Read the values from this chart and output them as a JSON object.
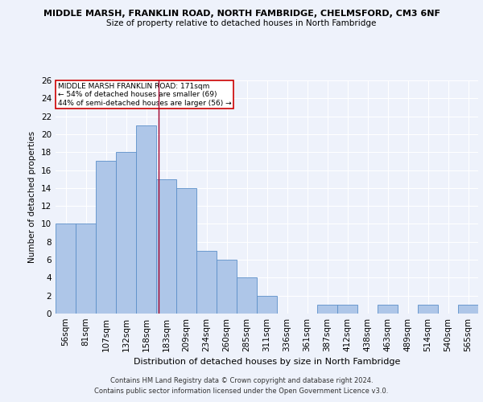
{
  "title1": "MIDDLE MARSH, FRANKLIN ROAD, NORTH FAMBRIDGE, CHELMSFORD, CM3 6NF",
  "title2": "Size of property relative to detached houses in North Fambridge",
  "xlabel": "Distribution of detached houses by size in North Fambridge",
  "ylabel": "Number of detached properties",
  "categories": [
    "56sqm",
    "81sqm",
    "107sqm",
    "132sqm",
    "158sqm",
    "183sqm",
    "209sqm",
    "234sqm",
    "260sqm",
    "285sqm",
    "311sqm",
    "336sqm",
    "361sqm",
    "387sqm",
    "412sqm",
    "438sqm",
    "463sqm",
    "489sqm",
    "514sqm",
    "540sqm",
    "565sqm"
  ],
  "values": [
    10,
    10,
    17,
    18,
    21,
    15,
    14,
    7,
    6,
    4,
    2,
    0,
    0,
    1,
    1,
    0,
    1,
    0,
    1,
    0,
    1
  ],
  "bar_color": "#aec6e8",
  "bar_edge_color": "#5b8fc9",
  "ylim": [
    0,
    26
  ],
  "yticks": [
    0,
    2,
    4,
    6,
    8,
    10,
    12,
    14,
    16,
    18,
    20,
    22,
    24,
    26
  ],
  "vline_x": 4.6,
  "vline_color": "#a0002a",
  "annotation_title": "MIDDLE MARSH FRANKLIN ROAD: 171sqm",
  "annotation_line1": "← 54% of detached houses are smaller (69)",
  "annotation_line2": "44% of semi-detached houses are larger (56) →",
  "annotation_box_color": "#ffffff",
  "annotation_box_edge_color": "#cc0000",
  "footer1": "Contains HM Land Registry data © Crown copyright and database right 2024.",
  "footer2": "Contains public sector information licensed under the Open Government Licence v3.0.",
  "background_color": "#eef2fb",
  "grid_color": "#ffffff"
}
